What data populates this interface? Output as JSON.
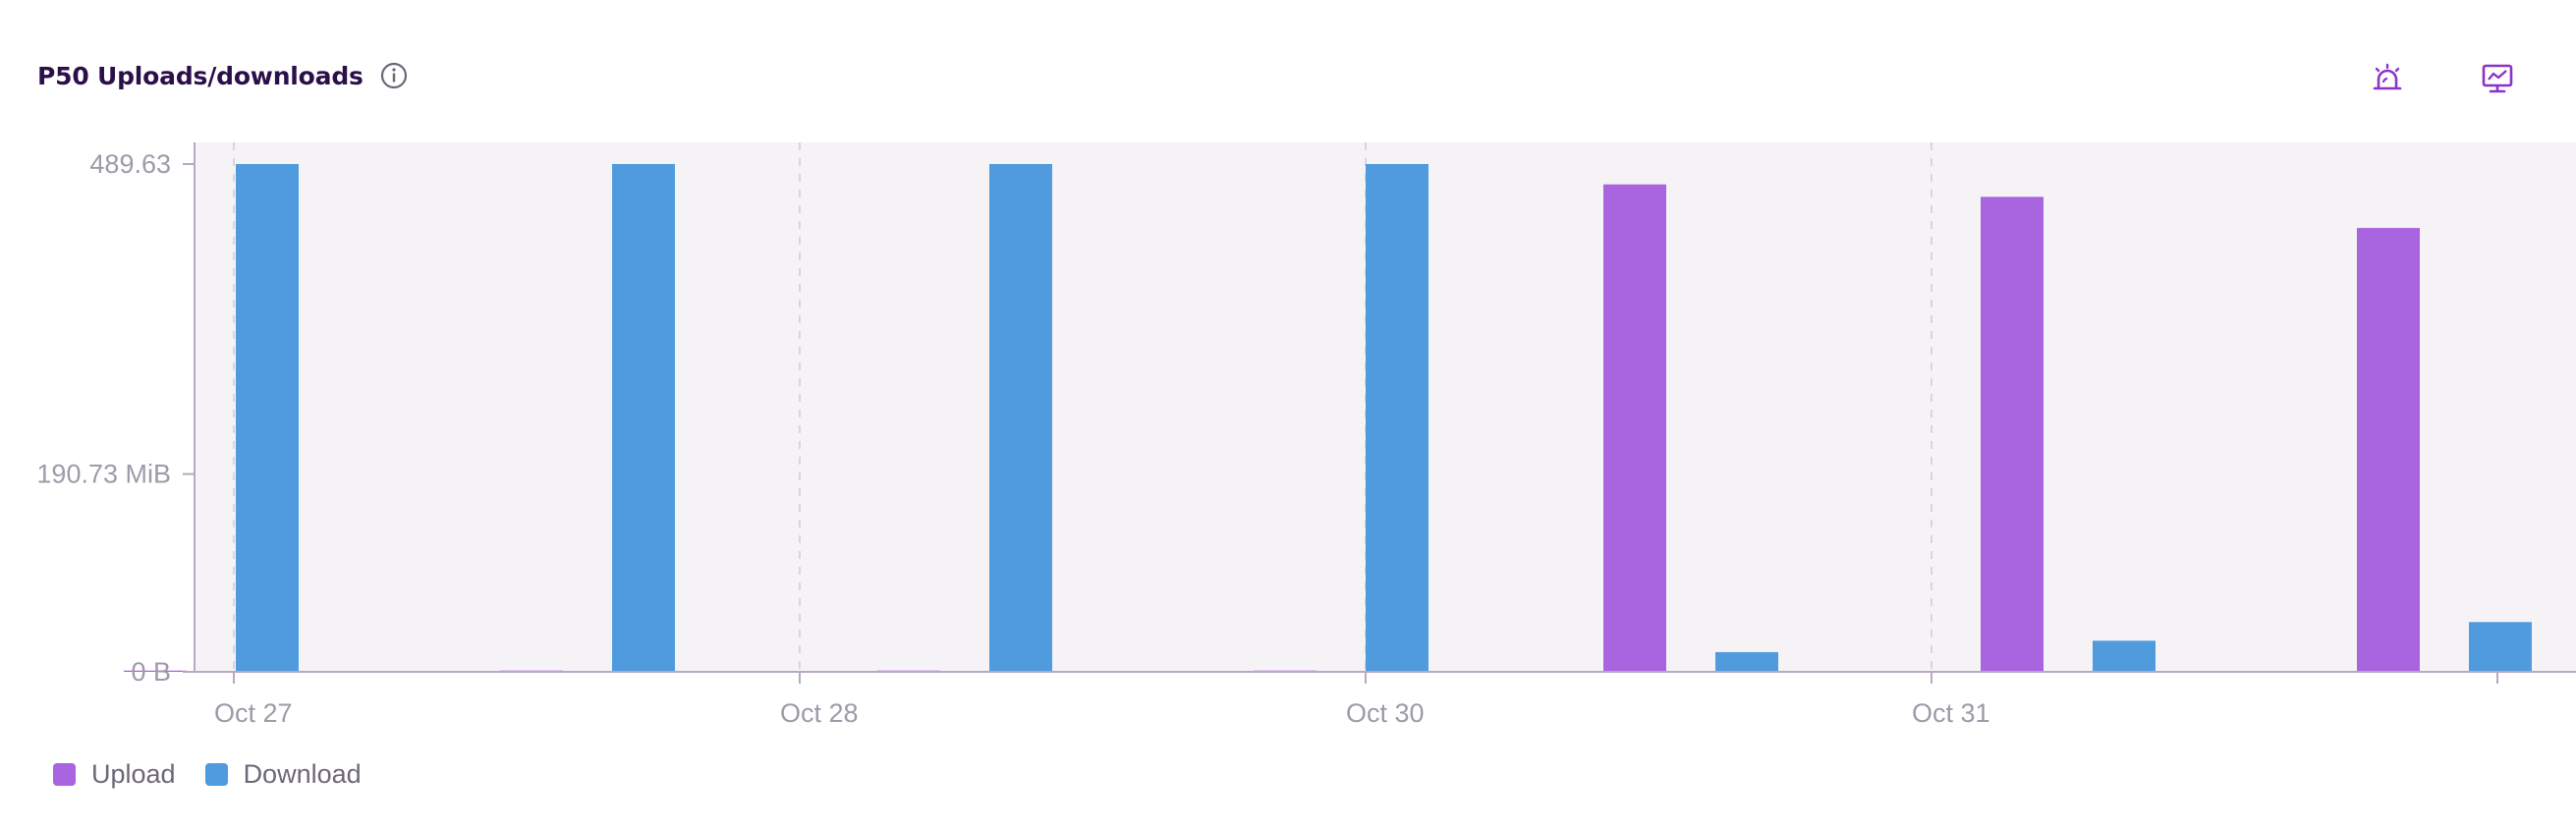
{
  "header": {
    "title": "P50 Uploads/downloads",
    "info_icon": "info-icon",
    "alert_icon": "siren-icon",
    "monitor_icon": "monitor-chart-icon"
  },
  "colors": {
    "upload": "#a964e0",
    "download": "#4f9bdd",
    "plot_bg": "#f6f3f7",
    "axis": "#b7a9c5",
    "tick_text": "#a09aa8",
    "accent": "#8b33c9"
  },
  "legend": [
    {
      "name": "Upload",
      "color": "#a964e0"
    },
    {
      "name": "Download",
      "color": "#4f9bdd"
    }
  ],
  "chart_data": {
    "type": "bar",
    "y_unit": "MiB",
    "y_ticks": [
      {
        "value": 0,
        "label": "0 B"
      },
      {
        "value": 190.73,
        "label": "190.73 MiB"
      },
      {
        "value": 489.63,
        "label": "489.63"
      }
    ],
    "ylim": [
      0,
      489.63
    ],
    "x_ticks": [
      "Oct 27",
      "Oct 28",
      "Oct 30",
      "Oct 31"
    ],
    "grid": "vertical dashed",
    "legend_position": "bottom-left",
    "series": [
      {
        "name": "Upload",
        "values": [
          1.2,
          1.2,
          1.2,
          1.2,
          470,
          458,
          428
        ]
      },
      {
        "name": "Download",
        "values": [
          489.63,
          489.63,
          489.63,
          489.63,
          19,
          30,
          48
        ]
      }
    ]
  }
}
